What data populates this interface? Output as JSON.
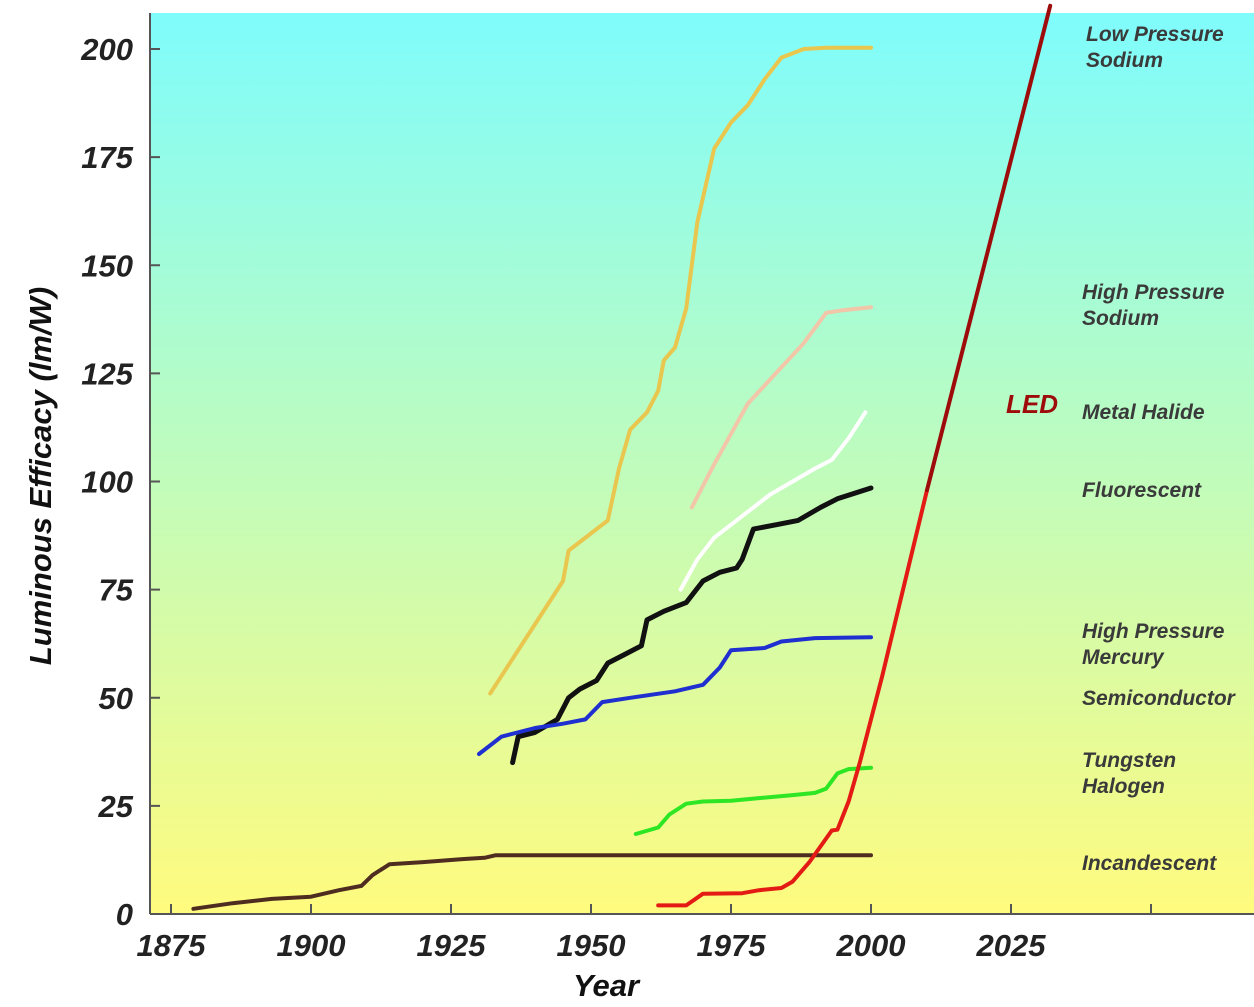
{
  "chart_data": {
    "type": "line",
    "xlabel": "Year",
    "ylabel": "Luminous Efficacy (lm/W)",
    "xlim": [
      1870,
      2100
    ],
    "ylim": [
      0,
      209
    ],
    "x_ticks": [
      1875,
      1900,
      1925,
      1950,
      1975,
      2000,
      2025
    ],
    "y_ticks": [
      0,
      25,
      50,
      75,
      100,
      125,
      150,
      175,
      200
    ],
    "grid": false,
    "background_gradient": [
      "#7ffcfc",
      "#fffb7e"
    ],
    "series": [
      {
        "name": "Low Pressure Sodium",
        "color": "#e9c64e",
        "points": [
          [
            1932,
            51
          ],
          [
            1945,
            77
          ],
          [
            1946,
            84
          ],
          [
            1948,
            86
          ],
          [
            1953,
            91
          ],
          [
            1955,
            103
          ],
          [
            1957,
            112
          ],
          [
            1960,
            116
          ],
          [
            1962,
            121
          ],
          [
            1963,
            128
          ],
          [
            1965,
            131
          ],
          [
            1967,
            140
          ],
          [
            1969,
            160
          ],
          [
            1972,
            177
          ],
          [
            1975,
            183
          ],
          [
            1978,
            187
          ],
          [
            1981,
            193
          ],
          [
            1984,
            198
          ],
          [
            1988,
            200
          ],
          [
            1992,
            200.3
          ],
          [
            2000,
            200.3
          ]
        ]
      },
      {
        "name": "High Pressure Sodium",
        "color": "#f2c6a8",
        "points": [
          [
            1968,
            94
          ],
          [
            1972,
            104
          ],
          [
            1978,
            118
          ],
          [
            1983,
            125
          ],
          [
            1988,
            132
          ],
          [
            1992,
            139
          ],
          [
            1995,
            139.6
          ],
          [
            2000,
            140.3
          ]
        ]
      },
      {
        "name": "Metal Halide",
        "color": "#ffffff",
        "points": [
          [
            1966,
            75
          ],
          [
            1969,
            82
          ],
          [
            1972,
            87
          ],
          [
            1977,
            92
          ],
          [
            1982,
            97
          ],
          [
            1986,
            100
          ],
          [
            1990,
            103
          ],
          [
            1993,
            105
          ],
          [
            1996,
            110
          ],
          [
            1999,
            116
          ]
        ]
      },
      {
        "name": "Fluorescent",
        "color": "#111111",
        "points": [
          [
            1936,
            35
          ],
          [
            1937,
            41
          ],
          [
            1940,
            42
          ],
          [
            1944,
            45
          ],
          [
            1946,
            50
          ],
          [
            1948,
            52
          ],
          [
            1951,
            54
          ],
          [
            1953,
            58
          ],
          [
            1956,
            60
          ],
          [
            1959,
            62
          ],
          [
            1960,
            68
          ],
          [
            1963,
            70
          ],
          [
            1967,
            72
          ],
          [
            1970,
            77
          ],
          [
            1973,
            79
          ],
          [
            1976,
            80
          ],
          [
            1977,
            82
          ],
          [
            1979,
            89
          ],
          [
            1983,
            90
          ],
          [
            1987,
            91
          ],
          [
            1991,
            94
          ],
          [
            1994,
            96
          ],
          [
            2000,
            98.5
          ]
        ]
      },
      {
        "name": "High Pressure Mercury",
        "color": "#1f2fd0",
        "points": [
          [
            1930,
            37
          ],
          [
            1934,
            41
          ],
          [
            1940,
            43
          ],
          [
            1945,
            44
          ],
          [
            1949,
            45
          ],
          [
            1952,
            49
          ],
          [
            1957,
            50
          ],
          [
            1965,
            51.5
          ],
          [
            1970,
            53
          ],
          [
            1973,
            57
          ],
          [
            1975,
            61
          ],
          [
            1981,
            61.5
          ],
          [
            1984,
            63
          ],
          [
            1990,
            63.8
          ],
          [
            2000,
            64
          ]
        ]
      },
      {
        "name": "Tungsten Halogen",
        "color": "#2ee624",
        "points": [
          [
            1958,
            18.5
          ],
          [
            1962,
            20
          ],
          [
            1964,
            23
          ],
          [
            1967,
            25.5
          ],
          [
            1970,
            26
          ],
          [
            1975,
            26.2
          ],
          [
            1980,
            26.8
          ],
          [
            1986,
            27.5
          ],
          [
            1990,
            28
          ],
          [
            1992,
            29
          ],
          [
            1994,
            32.5
          ],
          [
            1996,
            33.5
          ],
          [
            2000,
            33.8
          ]
        ]
      },
      {
        "name": "Incandescent",
        "color": "#4e2d20",
        "points": [
          [
            1879,
            1.2
          ],
          [
            1886,
            2.5
          ],
          [
            1893,
            3.5
          ],
          [
            1900,
            4
          ],
          [
            1905,
            5.5
          ],
          [
            1909,
            6.5
          ],
          [
            1911,
            9
          ],
          [
            1914,
            11.5
          ],
          [
            1920,
            12
          ],
          [
            1927,
            12.7
          ],
          [
            1931,
            13
          ],
          [
            1933,
            13.6
          ],
          [
            2000,
            13.6
          ]
        ]
      },
      {
        "name": "Semiconductor",
        "color": "#e31b14",
        "points": [
          [
            1962,
            2
          ],
          [
            1967,
            2
          ],
          [
            1970,
            4.7
          ],
          [
            1977,
            4.8
          ],
          [
            1980,
            5.5
          ],
          [
            1984,
            6
          ],
          [
            1986,
            7.5
          ],
          [
            1989,
            12
          ],
          [
            1993,
            19.3
          ],
          [
            1994,
            19.5
          ],
          [
            1996,
            26
          ],
          [
            1998,
            35
          ],
          [
            2000,
            45
          ],
          [
            2002,
            55
          ],
          [
            2010,
            98
          ]
        ]
      },
      {
        "name": "LED",
        "color": "#9e0b0b",
        "points": [
          [
            2010,
            98
          ],
          [
            2032,
            210
          ]
        ]
      }
    ],
    "labels": {
      "low_pressure_sodium": [
        "Low Pressure",
        "Sodium"
      ],
      "high_pressure_sodium": [
        "High Pressure",
        "Sodium"
      ],
      "metal_halide": "Metal Halide",
      "fluorescent": "Fluorescent",
      "high_pressure_mercury": [
        "High Pressure",
        "Mercury"
      ],
      "semiconductor": "Semiconductor",
      "tungsten_halogen": [
        "Tungsten",
        "Halogen"
      ],
      "incandescent": "Incandescent",
      "led": "LED"
    }
  }
}
